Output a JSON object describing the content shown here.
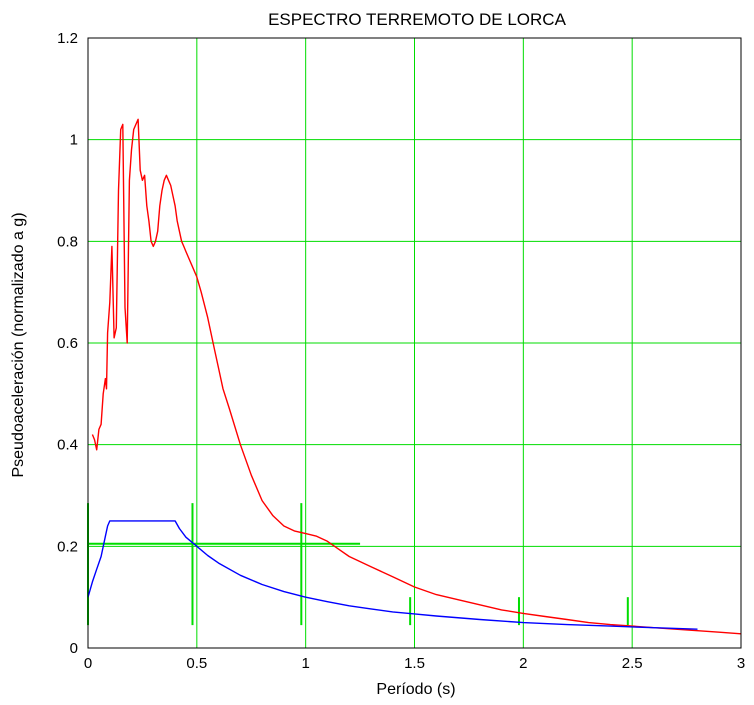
{
  "chart_data": {
    "type": "line",
    "title": "ESPECTRO TERREMOTO DE LORCA",
    "xlabel": "Período (s)",
    "ylabel": "Pseudoaceleración (normalizado a g)",
    "xlim": [
      0,
      3
    ],
    "ylim": [
      0,
      1.2
    ],
    "xticks": [
      0,
      0.5,
      1,
      1.5,
      2,
      2.5,
      3
    ],
    "xtick_labels": [
      "0",
      "0.5",
      "1",
      "1.5",
      "2",
      "2.5",
      "3"
    ],
    "yticks": [
      0,
      0.2,
      0.4,
      0.6,
      0.8,
      1,
      1.2
    ],
    "ytick_labels": [
      "0",
      "0.2",
      "0.4",
      "0.6",
      "0.8",
      "1",
      "1.2"
    ],
    "grid": true,
    "grid_color": "#00dd00",
    "series": [
      {
        "color": "#ff0000",
        "x": [
          0.02,
          0.03,
          0.04,
          0.05,
          0.06,
          0.07,
          0.08,
          0.085,
          0.09,
          0.1,
          0.11,
          0.12,
          0.13,
          0.14,
          0.15,
          0.16,
          0.17,
          0.18,
          0.19,
          0.2,
          0.21,
          0.22,
          0.23,
          0.24,
          0.25,
          0.26,
          0.27,
          0.28,
          0.29,
          0.3,
          0.31,
          0.32,
          0.33,
          0.34,
          0.35,
          0.36,
          0.37,
          0.38,
          0.39,
          0.4,
          0.41,
          0.42,
          0.43,
          0.44,
          0.45,
          0.46,
          0.48,
          0.5,
          0.52,
          0.55,
          0.58,
          0.6,
          0.62,
          0.65,
          0.7,
          0.75,
          0.8,
          0.85,
          0.9,
          0.95,
          1.0,
          1.05,
          1.1,
          1.15,
          1.2,
          1.3,
          1.4,
          1.5,
          1.6,
          1.7,
          1.8,
          1.9,
          2.0,
          2.1,
          2.2,
          2.3,
          2.4,
          2.5,
          2.6,
          2.7,
          2.8,
          2.9,
          3.0
        ],
        "y": [
          0.42,
          0.41,
          0.39,
          0.43,
          0.44,
          0.5,
          0.53,
          0.51,
          0.62,
          0.68,
          0.79,
          0.61,
          0.63,
          0.9,
          1.02,
          1.03,
          0.67,
          0.6,
          0.92,
          0.98,
          1.02,
          1.03,
          1.04,
          0.94,
          0.92,
          0.93,
          0.87,
          0.84,
          0.8,
          0.79,
          0.8,
          0.82,
          0.87,
          0.9,
          0.92,
          0.93,
          0.92,
          0.91,
          0.89,
          0.87,
          0.84,
          0.82,
          0.8,
          0.79,
          0.78,
          0.77,
          0.75,
          0.73,
          0.7,
          0.65,
          0.59,
          0.55,
          0.51,
          0.47,
          0.4,
          0.34,
          0.29,
          0.26,
          0.24,
          0.23,
          0.225,
          0.22,
          0.21,
          0.195,
          0.18,
          0.16,
          0.14,
          0.12,
          0.105,
          0.095,
          0.085,
          0.075,
          0.068,
          0.062,
          0.056,
          0.05,
          0.046,
          0.043,
          0.04,
          0.037,
          0.034,
          0.031,
          0.028
        ]
      },
      {
        "color": "#0000ff",
        "x": [
          0.0,
          0.02,
          0.04,
          0.06,
          0.08,
          0.09,
          0.1,
          0.2,
          0.3,
          0.4,
          0.42,
          0.45,
          0.5,
          0.55,
          0.6,
          0.7,
          0.8,
          0.9,
          1.0,
          1.1,
          1.2,
          1.3,
          1.4,
          1.5,
          1.6,
          1.8,
          2.0,
          2.2,
          2.4,
          2.6,
          2.8
        ],
        "y": [
          0.1,
          0.13,
          0.155,
          0.18,
          0.22,
          0.24,
          0.25,
          0.25,
          0.25,
          0.25,
          0.235,
          0.218,
          0.2,
          0.182,
          0.167,
          0.143,
          0.125,
          0.111,
          0.1,
          0.091,
          0.083,
          0.077,
          0.071,
          0.067,
          0.063,
          0.056,
          0.05,
          0.046,
          0.043,
          0.04,
          0.037
        ]
      }
    ],
    "annotation_lines": [
      {
        "x": [
          0,
          1.25
        ],
        "y": [
          0.205,
          0.205
        ],
        "color": "#00dd00"
      },
      {
        "x": [
          0,
          0
        ],
        "y": [
          0.045,
          0.285
        ],
        "color": "#00dd00"
      },
      {
        "x": [
          0.48,
          0.48
        ],
        "y": [
          0.045,
          0.285
        ],
        "color": "#00dd00"
      },
      {
        "x": [
          0.98,
          0.98
        ],
        "y": [
          0.045,
          0.285
        ],
        "color": "#00dd00"
      },
      {
        "x": [
          1.48,
          1.48
        ],
        "y": [
          0.045,
          0.1
        ],
        "color": "#00dd00"
      },
      {
        "x": [
          1.98,
          1.98
        ],
        "y": [
          0.045,
          0.1
        ],
        "color": "#00dd00"
      },
      {
        "x": [
          2.48,
          2.48
        ],
        "y": [
          0.045,
          0.1
        ],
        "color": "#00dd00"
      }
    ]
  }
}
